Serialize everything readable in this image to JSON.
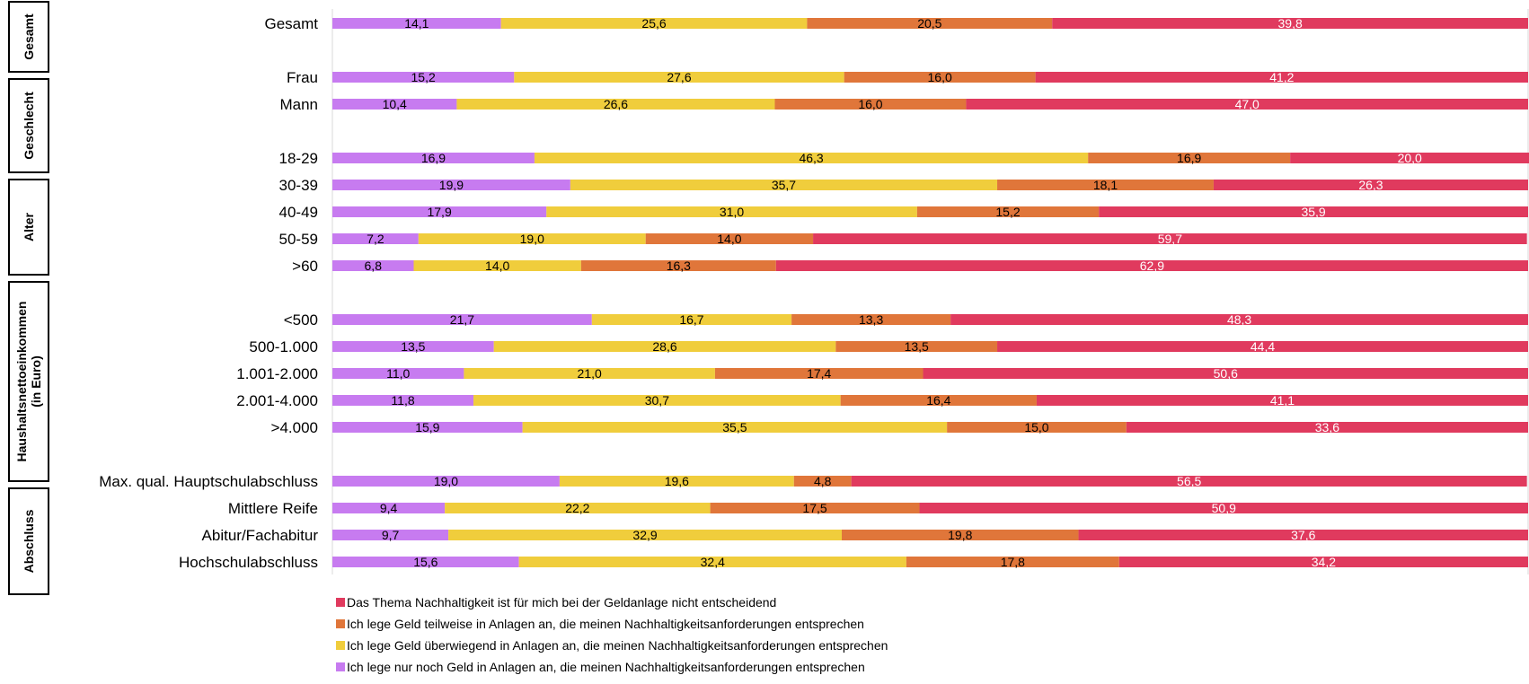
{
  "chart_data": {
    "type": "bar",
    "orientation": "horizontal",
    "stacked": true,
    "xlim": [
      0,
      100
    ],
    "categories": [
      "Gesamt",
      "Frau",
      "Mann",
      "18-29",
      "30-39",
      "40-49",
      "50-59",
      ">60",
      "<500",
      "500-1.000",
      "1.001-2.000",
      "2.001-4.000",
      ">4.000",
      "Max. qual. Hauptschulabschluss",
      "Mittlere Reife",
      "Abitur/Fachabitur",
      "Hochschulabschluss"
    ],
    "groups": [
      {
        "label": "Gesamt",
        "categories": [
          "Gesamt"
        ]
      },
      {
        "label": "Geschlecht",
        "categories": [
          "Frau",
          "Mann"
        ]
      },
      {
        "label": "Alter",
        "categories": [
          "18-29",
          "30-39",
          "40-49",
          "50-59",
          ">60"
        ]
      },
      {
        "label": "Haushaltsnettoeinkommen (in Euro)",
        "categories": [
          "<500",
          "500-1.000",
          "1.001-2.000",
          "2.001-4.000",
          ">4.000"
        ]
      },
      {
        "label": "Abschluss",
        "categories": [
          "Max. qual. Hauptschulabschluss",
          "Mittlere Reife",
          "Abitur/Fachabitur",
          "Hochschulabschluss"
        ]
      }
    ],
    "series": [
      {
        "name": "Ich lege nur noch Geld in Anlagen an, die meinen Nachhaltigkeitsanforderungen entsprechen",
        "color": "#c77bf0",
        "label_color": "#000000",
        "values": [
          14.1,
          15.2,
          10.4,
          16.9,
          19.9,
          17.9,
          7.2,
          6.8,
          21.7,
          13.5,
          11.0,
          11.8,
          15.9,
          19.0,
          9.4,
          9.7,
          15.6
        ]
      },
      {
        "name": "Ich lege Geld überwiegend in Anlagen an, die meinen Nachhaltigkeitsanforderungen entsprechen",
        "color": "#f0cd3c",
        "label_color": "#000000",
        "values": [
          25.6,
          27.6,
          26.6,
          46.3,
          35.7,
          31.0,
          19.0,
          14.0,
          16.7,
          28.6,
          21.0,
          30.7,
          35.5,
          19.6,
          22.2,
          32.9,
          32.4
        ]
      },
      {
        "name": "Ich lege Geld teilweise in Anlagen an, die meinen Nachhaltigkeitsanforderungen entsprechen",
        "color": "#e0763a",
        "label_color": "#000000",
        "values": [
          20.5,
          16.0,
          16.0,
          16.9,
          18.1,
          15.2,
          14.0,
          16.3,
          13.3,
          13.5,
          17.4,
          16.4,
          15.0,
          4.8,
          17.5,
          19.8,
          17.8
        ]
      },
      {
        "name": "Das Thema Nachhaltigkeit ist für mich bei der Geldanlage nicht entscheidend",
        "color": "#e03a5e",
        "label_color": "#ffffff",
        "values": [
          39.8,
          41.2,
          47.0,
          20.0,
          26.3,
          35.9,
          59.7,
          62.9,
          48.3,
          44.4,
          50.6,
          41.1,
          33.6,
          56.5,
          50.9,
          37.6,
          34.2
        ]
      }
    ],
    "legend": {
      "position": "bottom-left",
      "order": [
        3,
        2,
        1,
        0
      ]
    }
  }
}
